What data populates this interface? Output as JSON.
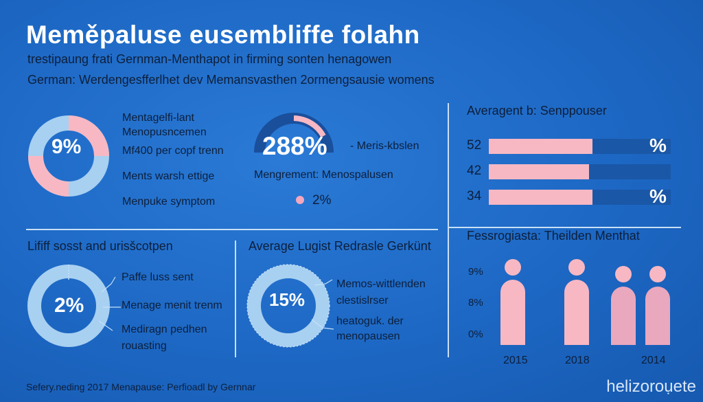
{
  "title": "Meměpaluse eusembliffe folahn",
  "subtitle_1": "trestipaung frati Gernman-Menthapot in firming sonten henagowen",
  "subtitle_2": "German: Werdengesfferlhet dev Memansvasthen 2ormengsausie womens",
  "panel_1": {
    "donut_value": "9%",
    "labels": [
      "Mentagelfi-lant",
      "Menopusncemen",
      "Mf400 per copf trenn",
      "Ments warsh ettige",
      "Menpuke symptom"
    ]
  },
  "panel_2": {
    "big_value": "288%",
    "side_label": "- Meris-kbslen",
    "caption": "Mengrement: Menospalusen",
    "dot_value": "2%"
  },
  "panel_3": {
    "heading": "Lififf sosst and urisšcotpen",
    "donut_value": "2%",
    "labels": [
      "Paffe luss sent",
      "Menage menit trenm",
      "Mediragn pedhen",
      "rouasting"
    ]
  },
  "panel_4": {
    "heading": "Average Lugist Redrasle Gerkünt",
    "donut_value": "15%",
    "labels": [
      "Memos-wittlenden",
      "clestislrser",
      "heatoguk. der",
      "menopausen"
    ]
  },
  "panel_5": {
    "heading": "Averagent b: Senppouser",
    "rows": [
      {
        "label": "52",
        "suffix": "%"
      },
      {
        "label": "42",
        "suffix": ""
      },
      {
        "label": "34",
        "suffix": "%"
      }
    ]
  },
  "panel_6": {
    "heading": "Fessrogiasta: Theilden Menthat",
    "y_ticks": [
      "9%",
      "8%",
      "0%"
    ],
    "x_labels": [
      "2015",
      "2018",
      "2014"
    ]
  },
  "footer": "Sefery.neding 2017 Menapause: Perfioadl by Gernnar",
  "brand": "helizoroụete",
  "colors": {
    "background": "#1f6cc7",
    "pink": "#f7b8c3",
    "light_blue": "#a8d0f1",
    "dark_track": "#1a57a6"
  },
  "chart_data": [
    {
      "type": "pie",
      "title": "",
      "values": [
        9
      ],
      "center_label": "9%"
    },
    {
      "type": "pie",
      "title": "Mengrement: Menospalusen",
      "values": [
        288
      ],
      "center_label": "288%"
    },
    {
      "type": "pie",
      "title": "Lififf sosst and urisšcotpen",
      "values": [
        2
      ],
      "center_label": "2%"
    },
    {
      "type": "pie",
      "title": "Average Lugist Redrasle Gerkünt",
      "values": [
        15
      ],
      "center_label": "15%"
    },
    {
      "type": "bar",
      "title": "Averagent b: Senppouser",
      "categories": [
        "52",
        "42",
        "34"
      ],
      "values": [
        0.57,
        0.55,
        0.57
      ],
      "xlim": [
        0,
        1
      ]
    },
    {
      "type": "bar",
      "title": "Fessrogiasta: Theilden Menthat",
      "categories": [
        "2015",
        "2018",
        "2014",
        "2014"
      ],
      "y_ticks": [
        "9%",
        "8%",
        "0%"
      ],
      "values": [
        0.95,
        0.95,
        0.85,
        0.85
      ]
    }
  ]
}
